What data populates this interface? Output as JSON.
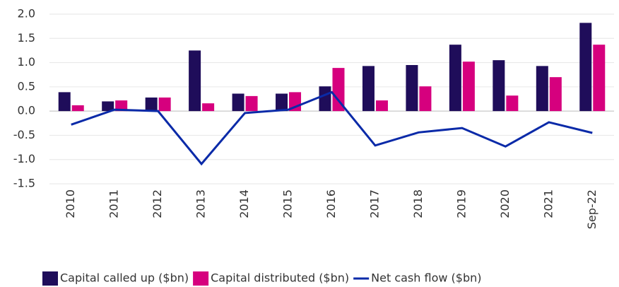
{
  "chart_data": {
    "type": "bar-line",
    "categories": [
      "2010",
      "2011",
      "2012",
      "2013",
      "2014",
      "2015",
      "2016",
      "2017",
      "2018",
      "2019",
      "2020",
      "2021",
      "Sep-22"
    ],
    "series": [
      {
        "name": "Capital called up ($bn)",
        "color": "#1f0d5a",
        "type": "bar",
        "values": [
          0.39,
          0.2,
          0.28,
          1.25,
          0.36,
          0.36,
          0.51,
          0.93,
          0.95,
          1.37,
          1.05,
          0.93,
          1.82
        ]
      },
      {
        "name": "Capital distributed ($bn)",
        "color": "#d6007e",
        "type": "bar",
        "values": [
          0.12,
          0.22,
          0.28,
          0.16,
          0.31,
          0.39,
          0.89,
          0.22,
          0.51,
          1.02,
          0.32,
          0.7,
          1.37
        ]
      },
      {
        "name": "Net cash flow ($bn)",
        "color": "#0a2aa8",
        "type": "line",
        "values": [
          -0.28,
          0.03,
          0.0,
          -1.09,
          -0.04,
          0.03,
          0.39,
          -0.71,
          -0.44,
          -0.35,
          -0.73,
          -0.23,
          -0.45
        ]
      }
    ],
    "ylim": [
      -1.5,
      2
    ],
    "yticks": [
      {
        "value": 2,
        "label": "2.0"
      },
      1.5,
      {
        "value": 1,
        "label": "1.0"
      },
      0.5,
      {
        "value": 0,
        "label": "0.0"
      },
      -0.5,
      {
        "value": -1,
        "label": "-1.0"
      },
      -1.5
    ],
    "grid": true,
    "legend": "bottom"
  }
}
